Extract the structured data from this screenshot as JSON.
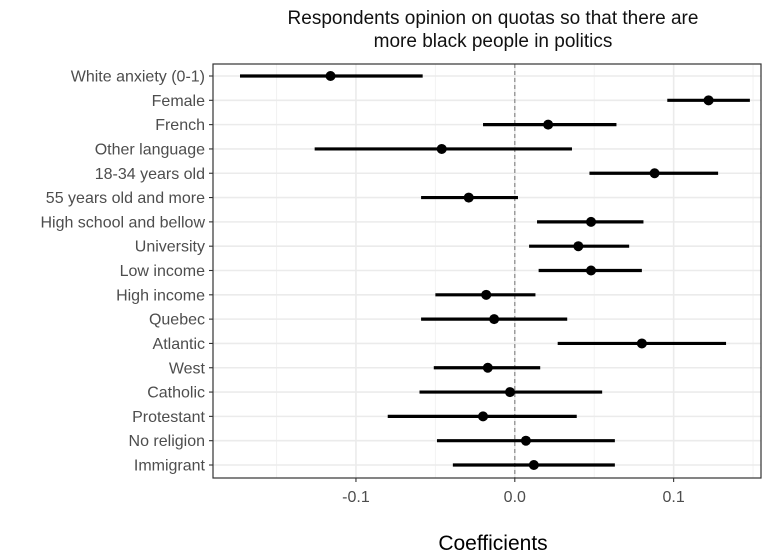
{
  "chart_data": {
    "type": "dot-and-whisker",
    "title_lines": [
      "Respondents opinion on quotas so that there are",
      "more black people in politics"
    ],
    "xlabel": "Coefficients",
    "ylabel": "",
    "xlim": [
      -0.19,
      0.155
    ],
    "x_ticks": [
      -0.1,
      0.0,
      0.1
    ],
    "x_tick_labels": [
      "-0.1",
      "0.0",
      "0.1"
    ],
    "reference_line": 0.0,
    "grid": true,
    "theme": "bw",
    "colors": {
      "point": "#000000",
      "interval": "#000000",
      "grid": "#ebebeb",
      "reference": "#8a8a8a",
      "panel_border": "#333333"
    },
    "categories": [
      "White anxiety (0-1)",
      "Female",
      "French",
      "Other language",
      "18-34 years old",
      "55 years old and more",
      "High school and bellow",
      "University",
      "Low income",
      "High income",
      "Quebec",
      "Atlantic",
      "West",
      "Catholic",
      "Protestant",
      "No religion",
      "Immigrant"
    ],
    "estimates": [
      -0.116,
      0.122,
      0.021,
      -0.046,
      0.088,
      -0.029,
      0.048,
      0.04,
      0.048,
      -0.018,
      -0.013,
      0.08,
      -0.017,
      -0.003,
      -0.02,
      0.007,
      0.012
    ],
    "ci_low": [
      -0.173,
      0.096,
      -0.02,
      -0.126,
      0.047,
      -0.059,
      0.014,
      0.009,
      0.015,
      -0.05,
      -0.059,
      0.027,
      -0.051,
      -0.06,
      -0.08,
      -0.049,
      -0.039
    ],
    "ci_high": [
      -0.058,
      0.148,
      0.064,
      0.036,
      0.128,
      0.002,
      0.081,
      0.072,
      0.08,
      0.013,
      0.033,
      0.133,
      0.016,
      0.055,
      0.039,
      0.063,
      0.063
    ]
  }
}
